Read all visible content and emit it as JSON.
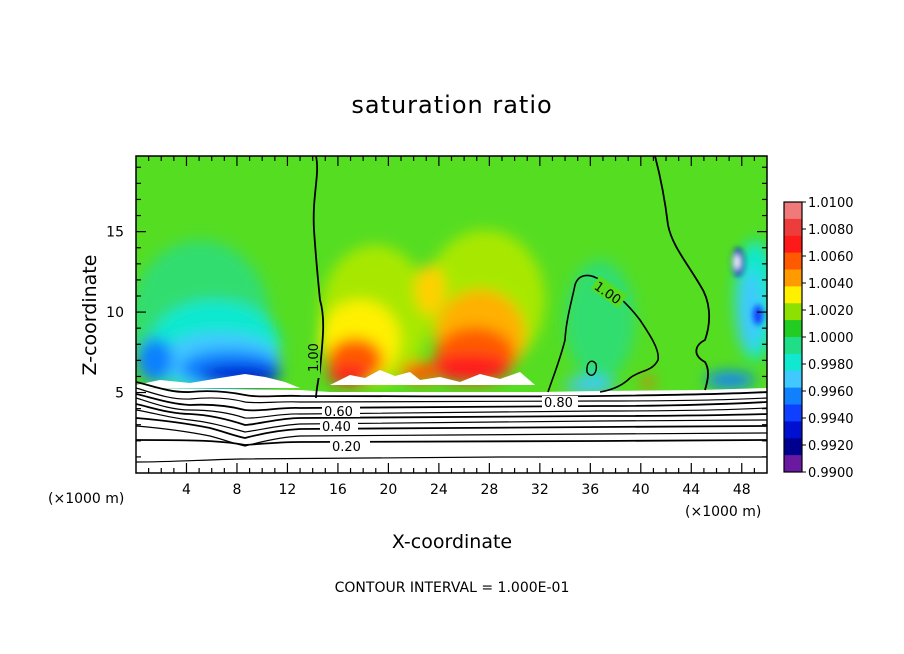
{
  "chart_data": {
    "type": "heatmap",
    "title": "saturation ratio",
    "xlabel": "X-coordinate",
    "ylabel": "Z-coordinate",
    "x_multiplier_label": "(×1000 m)",
    "x_multiplier_label_right": "(×1000 m)",
    "x_ticks": [
      4,
      8,
      12,
      16,
      20,
      24,
      28,
      32,
      36,
      40,
      44,
      48
    ],
    "y_ticks": [
      5,
      10,
      15
    ],
    "xlim": [
      0,
      50
    ],
    "ylim": [
      0,
      19.7
    ],
    "colorbar": {
      "ticks": [
        "1.0100",
        "1.0080",
        "1.0060",
        "1.0040",
        "1.0020",
        "1.0000",
        "0.9980",
        "0.9960",
        "0.9940",
        "0.9920",
        "0.9900"
      ],
      "colors": [
        "#f07a7a",
        "#ec3c3c",
        "#ff1a1a",
        "#ff5a00",
        "#ff9a00",
        "#fff000",
        "#8ee000",
        "#22cc22",
        "#20dd88",
        "#10e8d0",
        "#40c8ff",
        "#1080ff",
        "#1040ff",
        "#0010d0",
        "#000090",
        "#6a1aa0"
      ]
    },
    "contour_labels": [
      "1.00",
      "1.00",
      "0.80",
      "0.60",
      "0.40",
      "0.20"
    ],
    "contour_interval_text": "CONTOUR INTERVAL = 1.000E-01"
  }
}
